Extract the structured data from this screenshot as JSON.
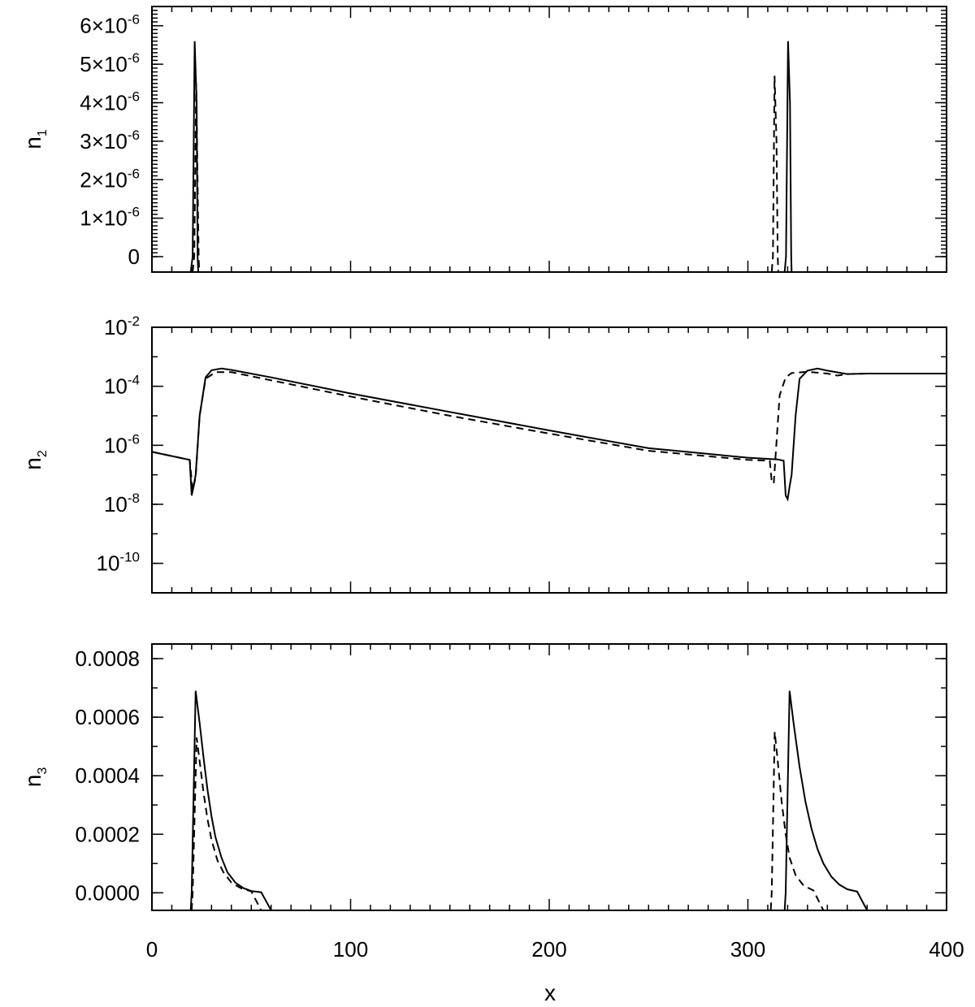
{
  "x_axis": {
    "label": "x",
    "ticks": [
      "0",
      "100",
      "200",
      "300",
      "400"
    ]
  },
  "chart_data": [
    {
      "type": "line",
      "ylabel_main": "n",
      "ylabel_sub": "1",
      "xlim": [
        0,
        400
      ],
      "ylim": [
        -4e-07,
        6.5e-06
      ],
      "yscale": "linear",
      "y_tick_labels": [
        {
          "value": 0,
          "mantissa": "0",
          "exponent": ""
        },
        {
          "value": 1e-06,
          "mantissa": "1×10",
          "exponent": "-6"
        },
        {
          "value": 2e-06,
          "mantissa": "2×10",
          "exponent": "-6"
        },
        {
          "value": 3e-06,
          "mantissa": "3×10",
          "exponent": "-6"
        },
        {
          "value": 4e-06,
          "mantissa": "4×10",
          "exponent": "-6"
        },
        {
          "value": 5e-06,
          "mantissa": "5×10",
          "exponent": "-6"
        },
        {
          "value": 6e-06,
          "mantissa": "6×10",
          "exponent": "-6"
        }
      ],
      "series": [
        {
          "style": "solid",
          "points": [
            [
              0,
              -4e-07
            ],
            [
              19.5,
              -4e-07
            ],
            [
              20.5,
              0
            ],
            [
              21.5,
              5.6e-06
            ],
            [
              22.5,
              4e-06
            ],
            [
              23,
              0
            ],
            [
              23.3,
              -4e-07
            ],
            [
              318.5,
              -4e-07
            ],
            [
              319.2,
              0
            ],
            [
              320.2,
              5.6e-06
            ],
            [
              321.2,
              4e-06
            ],
            [
              321.8,
              0
            ],
            [
              322,
              -4e-07
            ],
            [
              400,
              -4e-07
            ]
          ]
        },
        {
          "style": "dashed",
          "points": [
            [
              20.5,
              -4e-07
            ],
            [
              21.3,
              0
            ],
            [
              22.3,
              4.5e-06
            ],
            [
              23.5,
              0
            ],
            [
              23.8,
              -4e-07
            ],
            [
              312,
              -4e-07
            ],
            [
              312.6,
              0
            ],
            [
              313.4,
              4.7e-06
            ],
            [
              314.4,
              3e-06
            ],
            [
              315,
              0
            ],
            [
              315.3,
              -4e-07
            ]
          ]
        }
      ]
    },
    {
      "type": "line",
      "ylabel_main": "n",
      "ylabel_sub": "2",
      "xlim": [
        0,
        400
      ],
      "ylim": [
        1e-11,
        0.01
      ],
      "yscale": "log",
      "y_tick_labels": [
        {
          "value": 1e-10,
          "mantissa": "10",
          "exponent": "-10"
        },
        {
          "value": 1e-08,
          "mantissa": "10",
          "exponent": "-8"
        },
        {
          "value": 1e-06,
          "mantissa": "10",
          "exponent": "-6"
        },
        {
          "value": 0.0001,
          "mantissa": "10",
          "exponent": "-4"
        },
        {
          "value": 0.01,
          "mantissa": "10",
          "exponent": "-2"
        }
      ],
      "series": [
        {
          "style": "solid",
          "points": [
            [
              0,
              6e-07
            ],
            [
              19,
              3.2e-07
            ],
            [
              20,
              2e-08
            ],
            [
              21,
              4e-08
            ],
            [
              22,
              1e-07
            ],
            [
              24,
              1e-05
            ],
            [
              27,
              0.0002
            ],
            [
              30,
              0.00035
            ],
            [
              35,
              0.0004
            ],
            [
              40,
              0.00036
            ],
            [
              60,
              0.0002
            ],
            [
              100,
              5.7e-05
            ],
            [
              150,
              1.35e-05
            ],
            [
              200,
              3.2e-06
            ],
            [
              250,
              8e-07
            ],
            [
              300,
              3.8e-07
            ],
            [
              315,
              3.3e-07
            ],
            [
              318,
              3e-07
            ],
            [
              319,
              2e-08
            ],
            [
              320,
              1.5e-08
            ],
            [
              321,
              4e-08
            ],
            [
              322,
              1e-07
            ],
            [
              324,
              1e-05
            ],
            [
              326,
              0.00018
            ],
            [
              330,
              0.00034
            ],
            [
              335,
              0.0004
            ],
            [
              340,
              0.00034
            ],
            [
              350,
              0.00026
            ],
            [
              360,
              0.00027
            ],
            [
              400,
              0.00027
            ]
          ]
        },
        {
          "style": "dashed",
          "points": [
            [
              0,
              6e-07
            ],
            [
              19,
              3.2e-07
            ],
            [
              20.5,
              3e-08
            ],
            [
              22,
              8e-08
            ],
            [
              24,
              1e-05
            ],
            [
              27,
              0.00018
            ],
            [
              32,
              0.0003
            ],
            [
              40,
              0.0003
            ],
            [
              60,
              0.00016
            ],
            [
              100,
              4.5e-05
            ],
            [
              150,
              1e-05
            ],
            [
              200,
              2.5e-06
            ],
            [
              250,
              6.5e-07
            ],
            [
              300,
              3.2e-07
            ],
            [
              311,
              3e-07
            ],
            [
              312,
              6e-08
            ],
            [
              313,
              5e-08
            ],
            [
              314,
              5e-07
            ],
            [
              316,
              5e-05
            ],
            [
              319,
              0.0002
            ],
            [
              322,
              0.00028
            ],
            [
              330,
              0.00031
            ],
            [
              340,
              0.00027
            ],
            [
              345,
              0.00023
            ],
            [
              350,
              0.00026
            ],
            [
              360,
              0.00027
            ],
            [
              400,
              0.00027
            ]
          ]
        }
      ]
    },
    {
      "type": "line",
      "ylabel_main": "n",
      "ylabel_sub": "3",
      "xlim": [
        0,
        400
      ],
      "ylim": [
        -6e-05,
        0.00085
      ],
      "yscale": "linear",
      "y_tick_labels": [
        {
          "value": 0,
          "mantissa": "0.0000",
          "exponent": ""
        },
        {
          "value": 0.0002,
          "mantissa": "0.0002",
          "exponent": ""
        },
        {
          "value": 0.0004,
          "mantissa": "0.0004",
          "exponent": ""
        },
        {
          "value": 0.0006,
          "mantissa": "0.0006",
          "exponent": ""
        },
        {
          "value": 0.0008,
          "mantissa": "0.0008",
          "exponent": ""
        }
      ],
      "series": [
        {
          "style": "solid",
          "points": [
            [
              0,
              -6e-05
            ],
            [
              19.5,
              -6e-05
            ],
            [
              20,
              0
            ],
            [
              22,
              0.00069
            ],
            [
              24,
              0.00058
            ],
            [
              26,
              0.00046
            ],
            [
              28,
              0.00035
            ],
            [
              30,
              0.00026
            ],
            [
              32,
              0.00019
            ],
            [
              35,
              0.00012
            ],
            [
              38,
              7e-05
            ],
            [
              42,
              3.5e-05
            ],
            [
              46,
              1.6e-05
            ],
            [
              50,
              6e-06
            ],
            [
              55,
              2e-06
            ],
            [
              60,
              -6e-05
            ],
            [
              318.5,
              -6e-05
            ],
            [
              319,
              0
            ],
            [
              321,
              0.00069
            ],
            [
              323,
              0.00058
            ],
            [
              326,
              0.00043
            ],
            [
              329,
              0.00031
            ],
            [
              332,
              0.00022
            ],
            [
              335,
              0.00015
            ],
            [
              338,
              0.0001
            ],
            [
              342,
              5.5e-05
            ],
            [
              346,
              2.8e-05
            ],
            [
              350,
              1.2e-05
            ],
            [
              355,
              4e-06
            ],
            [
              360,
              -6e-05
            ],
            [
              400,
              -6e-05
            ]
          ]
        },
        {
          "style": "dashed",
          "points": [
            [
              20,
              -6e-05
            ],
            [
              20.5,
              0
            ],
            [
              22.5,
              0.00053
            ],
            [
              24,
              0.00045
            ],
            [
              26,
              0.00034
            ],
            [
              28,
              0.00025
            ],
            [
              30,
              0.00018
            ],
            [
              33,
              0.00011
            ],
            [
              36,
              7e-05
            ],
            [
              40,
              3.5e-05
            ],
            [
              45,
              1.5e-05
            ],
            [
              50,
              5e-06
            ],
            [
              55,
              -6e-05
            ],
            [
              311.5,
              -6e-05
            ],
            [
              312,
              0
            ],
            [
              313.5,
              0.00055
            ],
            [
              315,
              0.00045
            ],
            [
              317,
              0.00031
            ],
            [
              319,
              0.0002
            ],
            [
              321,
              0.00012
            ],
            [
              324,
              6e-05
            ],
            [
              328,
              2.5e-05
            ],
            [
              333,
              8e-06
            ],
            [
              338,
              -6e-05
            ]
          ]
        }
      ]
    }
  ]
}
